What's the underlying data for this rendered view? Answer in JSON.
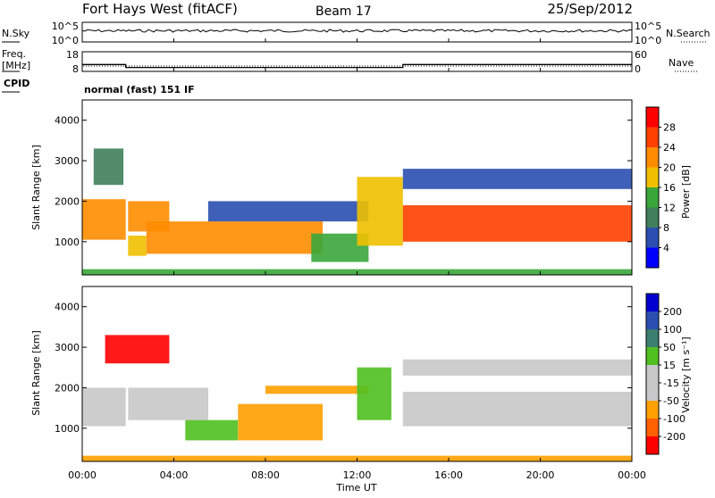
{
  "header": {
    "radar": "Fort Hays West (fitACF)",
    "beam": "Beam 17",
    "date": "25/Sep/2012"
  },
  "noise_panel": {
    "left_label": "N.Sky",
    "right_label": "N.Search",
    "left_ticks": [
      "10^5",
      "10^0"
    ],
    "right_ticks": [
      "10^5",
      "10^0"
    ]
  },
  "freq_panel": {
    "left_label_1": "Freq.",
    "left_label_2": "[MHz]",
    "right_label": "Nave",
    "left_ticks": [
      "18",
      "8"
    ],
    "right_ticks": [
      "60",
      "0"
    ]
  },
  "cpid_panel": {
    "label": "CPID",
    "text": "normal (fast) 151 IF"
  },
  "colors": {
    "power": [
      "#0000ff",
      "#2a4fb0",
      "#3f7f5a",
      "#3aa63a",
      "#f0c000",
      "#ff8c00",
      "#ff4000",
      "#ff0000"
    ],
    "velocity": [
      "#ff0000",
      "#ff6000",
      "#ffa000",
      "#c8c8c8",
      "#c8c8c8",
      "#50c020",
      "#3a7f70",
      "#2a4fb0",
      "#0000d0"
    ]
  },
  "chart_data": [
    {
      "type": "heatmap",
      "quantity": "power",
      "ylabel": "Slant Range [km]",
      "yticks": [
        "4000",
        "3000",
        "2000",
        "1000"
      ],
      "ylim": [
        180,
        4500
      ],
      "xlim": [
        "00:00",
        "24:00"
      ],
      "colorbar_label": "Power [dB]",
      "colorbar_ticks": [
        "28",
        "24",
        "20",
        "16",
        "12",
        "8",
        "4"
      ],
      "bands": [
        {
          "t0": 0.0,
          "t1": 1.9,
          "r0": 1050,
          "r1": 2050,
          "level": 5
        },
        {
          "t0": 0.5,
          "t1": 1.8,
          "r0": 2400,
          "r1": 3300,
          "level": 2
        },
        {
          "t0": 2.0,
          "t1": 3.8,
          "r0": 1250,
          "r1": 2000,
          "level": 5
        },
        {
          "t0": 2.0,
          "t1": 2.8,
          "r0": 650,
          "r1": 1150,
          "level": 4
        },
        {
          "t0": 2.8,
          "t1": 10.5,
          "r0": 700,
          "r1": 1500,
          "level": 5
        },
        {
          "t0": 5.5,
          "t1": 12.5,
          "r0": 1500,
          "r1": 2000,
          "level": 1
        },
        {
          "t0": 10.0,
          "t1": 12.5,
          "r0": 500,
          "r1": 1200,
          "level": 3
        },
        {
          "t0": 12.0,
          "t1": 14.0,
          "r0": 900,
          "r1": 2600,
          "level": 4
        },
        {
          "t0": 14.0,
          "t1": 24.0,
          "r0": 1000,
          "r1": 1900,
          "level": 6
        },
        {
          "t0": 14.0,
          "t1": 24.0,
          "r0": 2300,
          "r1": 2800,
          "level": 1
        },
        {
          "t0": 0.0,
          "t1": 24.0,
          "r0": 180,
          "r1": 320,
          "level": 3
        }
      ]
    },
    {
      "type": "heatmap",
      "quantity": "velocity",
      "ylabel": "Slant Range [km]",
      "yticks": [
        "4000",
        "3000",
        "2000",
        "1000"
      ],
      "ylim": [
        180,
        4500
      ],
      "xlim": [
        "00:00",
        "24:00"
      ],
      "colorbar_label": "Velocity [m s⁻¹]",
      "colorbar_ticks": [
        "200",
        "100",
        "50",
        "15",
        "-15",
        "-50",
        "-100",
        "-200"
      ],
      "bands": [
        {
          "t0": 0.0,
          "t1": 1.9,
          "r0": 1050,
          "r1": 2000,
          "level": 3
        },
        {
          "t0": 1.0,
          "t1": 3.8,
          "r0": 2600,
          "r1": 3300,
          "level": 0
        },
        {
          "t0": 2.0,
          "t1": 5.5,
          "r0": 1200,
          "r1": 2000,
          "level": 3
        },
        {
          "t0": 4.5,
          "t1": 6.8,
          "r0": 700,
          "r1": 1200,
          "level": 5
        },
        {
          "t0": 6.8,
          "t1": 10.5,
          "r0": 700,
          "r1": 1600,
          "level": 2
        },
        {
          "t0": 8.0,
          "t1": 12.5,
          "r0": 1850,
          "r1": 2050,
          "level": 2
        },
        {
          "t0": 12.0,
          "t1": 13.5,
          "r0": 1200,
          "r1": 2500,
          "level": 5
        },
        {
          "t0": 14.0,
          "t1": 24.0,
          "r0": 1050,
          "r1": 1900,
          "level": 3
        },
        {
          "t0": 14.0,
          "t1": 24.0,
          "r0": 2300,
          "r1": 2700,
          "level": 3
        },
        {
          "t0": 0.0,
          "t1": 24.0,
          "r0": 180,
          "r1": 320,
          "level": 2
        }
      ]
    }
  ],
  "time_axis": {
    "ticks": [
      "00:00",
      "04:00",
      "08:00",
      "12:00",
      "16:00",
      "20:00",
      "00:00"
    ],
    "label": "Time UT"
  },
  "freq_trace": {
    "times": [
      0.0,
      1.9,
      1.9,
      14.0,
      14.0,
      24.0
    ],
    "freq_mhz": [
      11.5,
      11.5,
      10.0,
      10.0,
      11.5,
      11.5
    ]
  }
}
